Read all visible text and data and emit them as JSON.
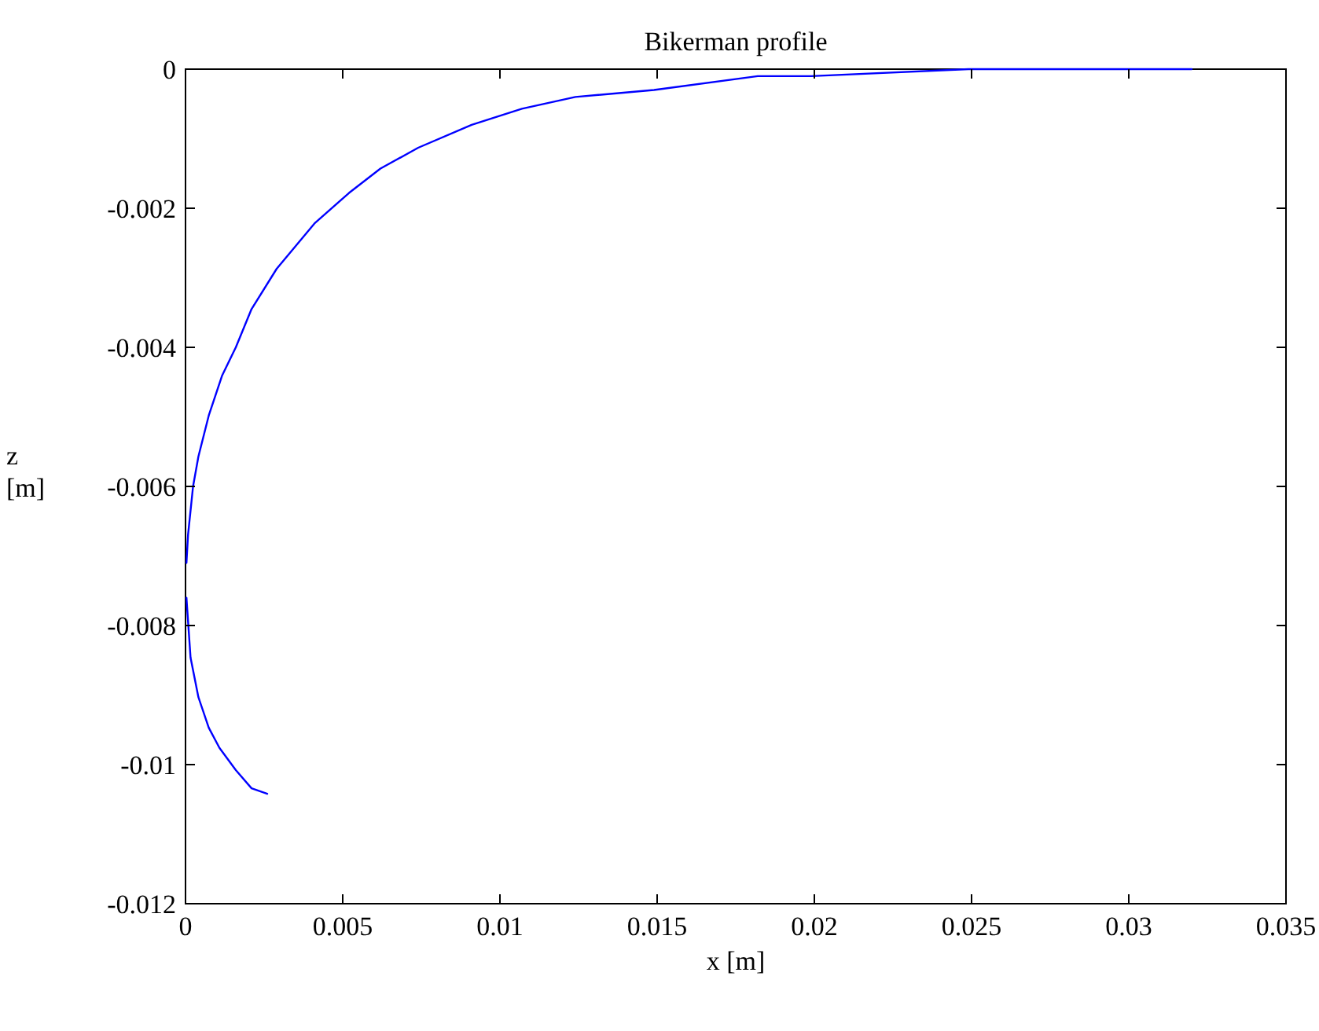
{
  "chart_data": {
    "type": "line",
    "title": "Bikerman profile",
    "xlabel": "x [m]",
    "ylabel": "z [m]",
    "xlim": [
      0,
      0.035
    ],
    "ylim": [
      -0.012,
      0
    ],
    "xticks": [
      0,
      0.005,
      0.01,
      0.015,
      0.02,
      0.025,
      0.03,
      0.035
    ],
    "yticks": [
      -0.012,
      -0.01,
      -0.008,
      -0.006,
      -0.004,
      -0.002,
      0
    ],
    "grid": false,
    "marker": "none",
    "line_style": "solid",
    "series": [
      {
        "color": "#0000ff",
        "x": [
          0.0026,
          0.0021,
          0.0016,
          0.00108,
          0.00074,
          0.00041,
          0.00016,
          3e-05
        ],
        "values": [
          -0.01042,
          -0.01034,
          -0.01008,
          -0.00976,
          -0.00947,
          -0.00903,
          -0.00846,
          -0.0076
        ]
      },
      {
        "color": "#0000ff",
        "x": [
          3e-05,
          8e-05,
          0.00024,
          0.00041,
          0.00074,
          0.00116,
          0.0016,
          0.0021,
          0.0029,
          0.0041,
          0.0052,
          0.0062,
          0.0074,
          0.0091,
          0.0107,
          0.0124,
          0.0149,
          0.0182,
          0.0199,
          0.0249,
          0.032
        ],
        "values": [
          -0.0071,
          -0.0067,
          -0.006,
          -0.00557,
          -0.00498,
          -0.00441,
          -0.004,
          -0.00345,
          -0.00287,
          -0.00222,
          -0.00178,
          -0.00143,
          -0.00113,
          -0.0008,
          -0.00057,
          -0.0004,
          -0.0003,
          -0.0001,
          -0.0001,
          0,
          0
        ]
      }
    ]
  }
}
